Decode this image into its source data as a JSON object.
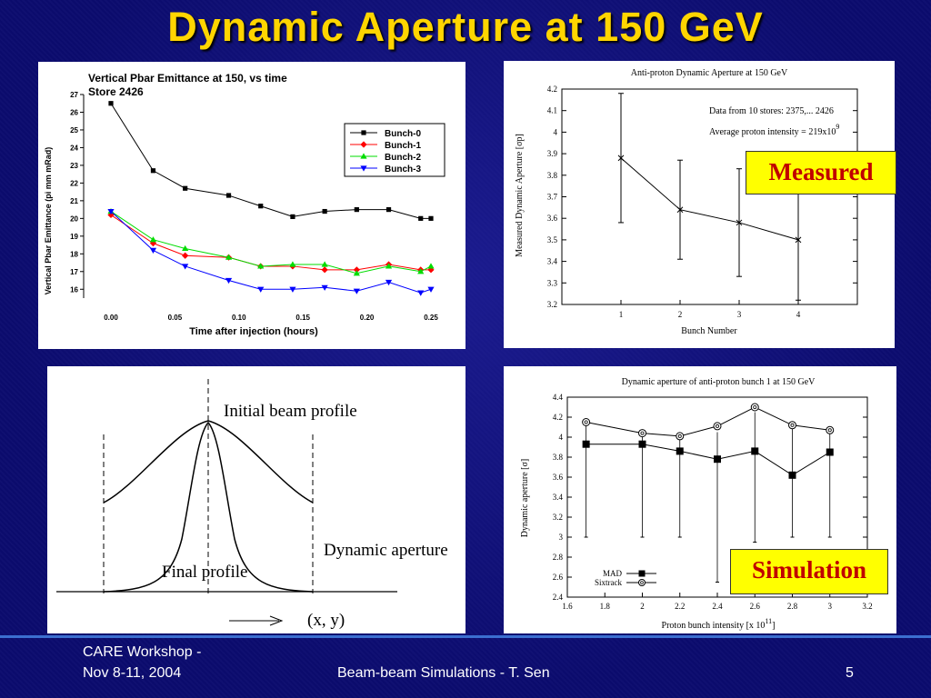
{
  "slide": {
    "title": "Dynamic Aperture at 150 GeV",
    "footer_left_1": "CARE Workshop -",
    "footer_left_2": "Nov 8-11, 2004",
    "footer_center": "Beam-beam Simulations - T. Sen",
    "footer_page": "5",
    "badge_measured": "Measured",
    "badge_simulation": "Simulation"
  },
  "colors": {
    "background": "#0b0b6e",
    "title": "#ffd500",
    "badge_bg": "#ffff00",
    "badge_text": "#c00000",
    "footer_line": "#3b6fd0"
  },
  "chart_data": [
    {
      "type": "line",
      "title": "Vertical Pbar Emittance  at 150, vs time",
      "subtitle": "Store 2426",
      "xlabel": "Time after injection (hours)",
      "ylabel": "Vertical Pbar Emittance (pi mm mRad)",
      "xlim": [
        0,
        0.25
      ],
      "ylim": [
        15.5,
        27
      ],
      "xticks": [
        "0.00",
        "0.05",
        "0.10",
        "0.15",
        "0.20",
        "0.25"
      ],
      "yticks": [
        "16",
        "17",
        "18",
        "19",
        "20",
        "21",
        "22",
        "23",
        "24",
        "25",
        "26",
        "27"
      ],
      "legend_position": "top-right",
      "x": [
        0.0,
        0.033,
        0.058,
        0.092,
        0.117,
        0.142,
        0.167,
        0.192,
        0.217,
        0.242,
        0.25
      ],
      "series": [
        {
          "name": "Bunch-0",
          "color": "#000000",
          "marker": "square",
          "values": [
            26.5,
            22.7,
            21.7,
            21.3,
            20.7,
            20.1,
            20.4,
            20.5,
            20.5,
            20.0,
            20.0
          ]
        },
        {
          "name": "Bunch-1",
          "color": "#ff0000",
          "marker": "diamond",
          "values": [
            20.2,
            18.6,
            17.9,
            17.8,
            17.3,
            17.3,
            17.1,
            17.1,
            17.4,
            17.1,
            17.1
          ]
        },
        {
          "name": "Bunch-2",
          "color": "#00dd00",
          "marker": "triangle",
          "values": [
            20.4,
            18.8,
            18.3,
            17.8,
            17.3,
            17.4,
            17.4,
            16.9,
            17.3,
            17.0,
            17.3
          ]
        },
        {
          "name": "Bunch-3",
          "color": "#0000ff",
          "marker": "triangle-down",
          "values": [
            20.4,
            18.2,
            17.3,
            16.5,
            16.0,
            16.0,
            16.1,
            15.9,
            16.4,
            15.8,
            16.0
          ]
        }
      ]
    },
    {
      "type": "line",
      "title": "Anti-proton Dynamic Aperture at 150 GeV",
      "xlabel": "Bunch Number",
      "ylabel": "Measured Dynamic Aperture [σp]",
      "xlim": [
        0,
        5
      ],
      "ylim": [
        3.2,
        4.2
      ],
      "xticks": [
        "1",
        "2",
        "3",
        "4"
      ],
      "yticks": [
        "3.2",
        "3.3",
        "3.4",
        "3.5",
        "3.6",
        "3.7",
        "3.8",
        "3.9",
        "4",
        "4.1",
        "4.2"
      ],
      "annotation_1": "Data from 10 stores: 2375,... 2426",
      "annotation_2": "Average proton intensity = 219x10",
      "annotation_2_exp": "9",
      "x": [
        1,
        2,
        3,
        4
      ],
      "values": [
        3.88,
        3.64,
        3.58,
        3.5
      ],
      "err_low": [
        3.58,
        3.41,
        3.33,
        3.22
      ],
      "err_high": [
        4.18,
        3.87,
        3.83,
        3.78
      ]
    },
    {
      "type": "diagram",
      "label_initial": "Initial beam profile",
      "label_final": "Final profile",
      "label_aperture": "Dynamic aperture",
      "label_axis": "(x, y)"
    },
    {
      "type": "line",
      "title": "Dynamic aperture of anti-proton bunch 1 at 150 GeV",
      "xlabel": "Proton bunch intensity [x 10",
      "xlabel_exp": "11",
      "xlabel_end": "]",
      "ylabel": "Dynamic aperture [σ]",
      "xlim": [
        1.6,
        3.2
      ],
      "ylim": [
        2.4,
        4.4
      ],
      "xticks": [
        "1.6",
        "1.8",
        "2",
        "2.2",
        "2.4",
        "2.6",
        "2.8",
        "3",
        "3.2"
      ],
      "yticks": [
        "2.4",
        "2.6",
        "2.8",
        "3",
        "3.2",
        "3.4",
        "3.6",
        "3.8",
        "4",
        "4.2",
        "4.4"
      ],
      "legend_position": "bottom-left",
      "x": [
        1.7,
        2.0,
        2.2,
        2.4,
        2.6,
        2.8,
        3.0
      ],
      "series": [
        {
          "name": "MAD",
          "marker": "filled-square",
          "values": [
            3.93,
            3.93,
            3.86,
            3.78,
            3.86,
            3.62,
            3.85
          ],
          "err_low": [
            3.0,
            3.0,
            3.0,
            2.55,
            2.95,
            3.0,
            3.0
          ],
          "err_high": [
            4.15,
            4.05,
            4.02,
            4.05,
            4.25,
            4.12,
            4.07
          ]
        },
        {
          "name": "Sixtrack",
          "marker": "open-circle",
          "values": [
            4.15,
            4.04,
            4.01,
            4.11,
            4.3,
            4.12,
            4.07
          ]
        }
      ]
    }
  ]
}
